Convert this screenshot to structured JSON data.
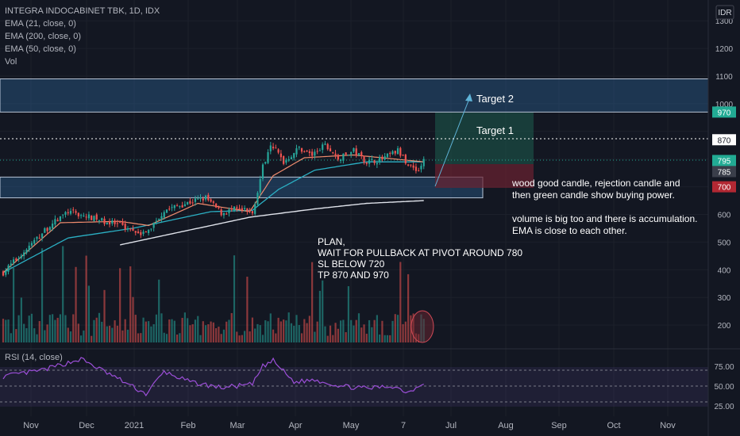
{
  "chart_data": [
    {
      "type": "candlestick",
      "title": "INTEGRA INDOCABINET TBK, 1D, IDX",
      "indicators": [
        "EMA (21, close, 0)",
        "EMA (200, close, 0)",
        "EMA (50, close, 0)",
        "Vol"
      ],
      "currency": "IDR",
      "x_ticks": [
        "Nov",
        "Dec",
        "2021",
        "Feb",
        "Mar",
        "Apr",
        "May",
        "7",
        "Jul",
        "Aug",
        "Sep",
        "Oct",
        "Nov"
      ],
      "y_ticks": [
        200,
        300,
        400,
        500,
        600,
        700,
        800,
        900,
        1000,
        1100,
        1200,
        1300
      ],
      "y_tick_labels": [
        "200",
        "300",
        "400",
        "500",
        "600",
        "",
        "",
        "",
        "1000",
        "1100",
        "1200",
        "1300"
      ],
      "ylim": [
        150,
        1350
      ],
      "price_tags": [
        {
          "value": 970,
          "label": "970",
          "color": "#22ab94"
        },
        {
          "value": 870,
          "label": "870",
          "color": "#ffffff"
        },
        {
          "value": 795,
          "label": "795",
          "color": "#22ab94"
        },
        {
          "value": 785,
          "label": "785",
          "color": "#3a3e4a"
        },
        {
          "value": 700,
          "label": "700",
          "color": "#b22833"
        }
      ],
      "zones": [
        {
          "name": "Target 2",
          "low": 970,
          "high": 1090
        },
        {
          "name": "pivot",
          "low": 660,
          "high": 735
        }
      ],
      "horizontal_lines": [
        {
          "label": "Target 1",
          "value": 870
        }
      ],
      "annotations": {
        "target2": "Target 2",
        "target1": "Target 1",
        "plan": [
          "PLAN,",
          "WAIT FOR PULLBACK AT PIVOT AROUND 780",
          "SL BELOW 720",
          "TP 870 AND 970"
        ],
        "note1": [
          "wood good candle, rejection candle and",
          "then green candle show buying power."
        ],
        "note2": [
          "volume is big too and there is accumulation.",
          "EMA is close to each other."
        ]
      },
      "price_path": [
        {
          "day": 0,
          "close": 390
        },
        {
          "day": 18,
          "close": 560
        },
        {
          "day": 25,
          "close": 610
        },
        {
          "day": 35,
          "close": 585
        },
        {
          "day": 45,
          "close": 560
        },
        {
          "day": 55,
          "close": 530
        },
        {
          "day": 62,
          "close": 615
        },
        {
          "day": 72,
          "close": 645
        },
        {
          "day": 78,
          "close": 660
        },
        {
          "day": 84,
          "close": 605
        },
        {
          "day": 90,
          "close": 620
        },
        {
          "day": 96,
          "close": 605
        },
        {
          "day": 100,
          "close": 770
        },
        {
          "day": 103,
          "close": 860
        },
        {
          "day": 108,
          "close": 790
        },
        {
          "day": 114,
          "close": 840
        },
        {
          "day": 119,
          "close": 815
        },
        {
          "day": 124,
          "close": 850
        },
        {
          "day": 129,
          "close": 800
        },
        {
          "day": 135,
          "close": 830
        },
        {
          "day": 140,
          "close": 790
        },
        {
          "day": 146,
          "close": 800
        },
        {
          "day": 152,
          "close": 830
        },
        {
          "day": 156,
          "close": 780
        },
        {
          "day": 160,
          "close": 760
        },
        {
          "day": 162,
          "close": 795
        }
      ],
      "ema21_path": [
        {
          "day": 0,
          "value": 390
        },
        {
          "day": 22,
          "value": 570
        },
        {
          "day": 45,
          "value": 575
        },
        {
          "day": 56,
          "value": 560
        },
        {
          "day": 75,
          "value": 640
        },
        {
          "day": 95,
          "value": 610
        },
        {
          "day": 104,
          "value": 740
        },
        {
          "day": 116,
          "value": 805
        },
        {
          "day": 135,
          "value": 815
        },
        {
          "day": 162,
          "value": 790
        }
      ],
      "ema50_path": [
        {
          "day": 0,
          "value": 390
        },
        {
          "day": 25,
          "value": 515
        },
        {
          "day": 50,
          "value": 550
        },
        {
          "day": 80,
          "value": 610
        },
        {
          "day": 96,
          "value": 615
        },
        {
          "day": 106,
          "value": 690
        },
        {
          "day": 120,
          "value": 760
        },
        {
          "day": 140,
          "value": 790
        },
        {
          "day": 162,
          "value": 790
        }
      ],
      "ema200_path": [
        {
          "day": 45,
          "value": 490
        },
        {
          "day": 70,
          "value": 540
        },
        {
          "day": 95,
          "value": 590
        },
        {
          "day": 120,
          "value": 620
        },
        {
          "day": 140,
          "value": 640
        },
        {
          "day": 162,
          "value": 650
        }
      ]
    },
    {
      "type": "line",
      "title": "RSI (14, close)",
      "y_ticks": [
        25,
        50,
        75
      ],
      "y_tick_labels": [
        "25.00",
        "50.00",
        "75.00"
      ],
      "guides": [
        30,
        50,
        70
      ],
      "ylim": [
        20,
        85
      ],
      "values": [
        {
          "day": 0,
          "value": 62
        },
        {
          "day": 15,
          "value": 70
        },
        {
          "day": 30,
          "value": 84
        },
        {
          "day": 45,
          "value": 58
        },
        {
          "day": 55,
          "value": 40
        },
        {
          "day": 62,
          "value": 68
        },
        {
          "day": 72,
          "value": 55
        },
        {
          "day": 84,
          "value": 48
        },
        {
          "day": 96,
          "value": 52
        },
        {
          "day": 100,
          "value": 75
        },
        {
          "day": 104,
          "value": 82
        },
        {
          "day": 112,
          "value": 55
        },
        {
          "day": 120,
          "value": 58
        },
        {
          "day": 130,
          "value": 50
        },
        {
          "day": 140,
          "value": 47
        },
        {
          "day": 150,
          "value": 50
        },
        {
          "day": 156,
          "value": 42
        },
        {
          "day": 162,
          "value": 55
        }
      ]
    }
  ]
}
